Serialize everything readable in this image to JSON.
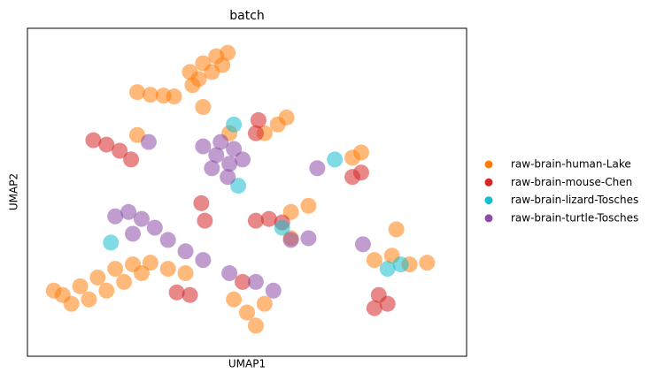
{
  "chart_data": {
    "type": "scatter",
    "title": "batch",
    "x_label": "UMAP1",
    "y_label": "UMAP2",
    "xlim": [
      30,
      530
    ],
    "ylim": [
      405,
      30
    ],
    "legend": "right",
    "series": [
      {
        "name": "raw-brain-human-Lake",
        "color": "#ff7f0e",
        "x": [
          215,
          230,
          245,
          258,
          225,
          240,
          252,
          218,
          155,
          170,
          185,
          197,
          300,
          315,
          325,
          155,
          400,
          410,
          330,
          350,
          70,
          90,
          110,
          130,
          150,
          170,
          80,
          100,
          120,
          140,
          160,
          190,
          210,
          60,
          265,
          280,
          290,
          300,
          425,
          445,
          465,
          485,
          230,
          260,
          330,
          450
        ],
        "y": [
          80,
          70,
          62,
          58,
          88,
          80,
          72,
          95,
          103,
          106,
          107,
          108,
          150,
          140,
          132,
          152,
          178,
          172,
          240,
          233,
          335,
          325,
          315,
          305,
          300,
          298,
          345,
          340,
          330,
          320,
          310,
          305,
          310,
          330,
          340,
          355,
          370,
          345,
          295,
          290,
          300,
          298,
          120,
          150,
          270,
          260
        ]
      },
      {
        "name": "raw-brain-mouse-Chen",
        "color": "#d62728",
        "x": [
          105,
          120,
          135,
          148,
          228,
          232,
          293,
          290,
          290,
          305,
          320,
          400,
          410,
          200,
          215,
          430,
          425,
          440,
          275
        ],
        "y": [
          158,
          163,
          170,
          180,
          230,
          250,
          135,
          150,
          250,
          248,
          252,
          200,
          195,
          332,
          335,
          335,
          350,
          345,
          320
        ]
      },
      {
        "name": "raw-brain-lizard-Tosches",
        "color": "#17becf",
        "x": [
          265,
          380,
          320,
          125,
          440,
          455,
          270
        ],
        "y": [
          140,
          180,
          258,
          275,
          305,
          300,
          210
        ]
      },
      {
        "name": "raw-brain-turtle-Tosches",
        "color": "#8c4ca5",
        "x": [
          230,
          245,
          260,
          275,
          250,
          265,
          240,
          258,
          130,
          145,
          160,
          175,
          150,
          190,
          210,
          230,
          260,
          290,
          310,
          330,
          350,
          360,
          168,
          412
        ],
        "y": [
          165,
          175,
          185,
          180,
          160,
          168,
          190,
          200,
          245,
          240,
          248,
          258,
          265,
          272,
          285,
          295,
          310,
          320,
          330,
          272,
          270,
          190,
          160,
          277
        ]
      }
    ]
  }
}
